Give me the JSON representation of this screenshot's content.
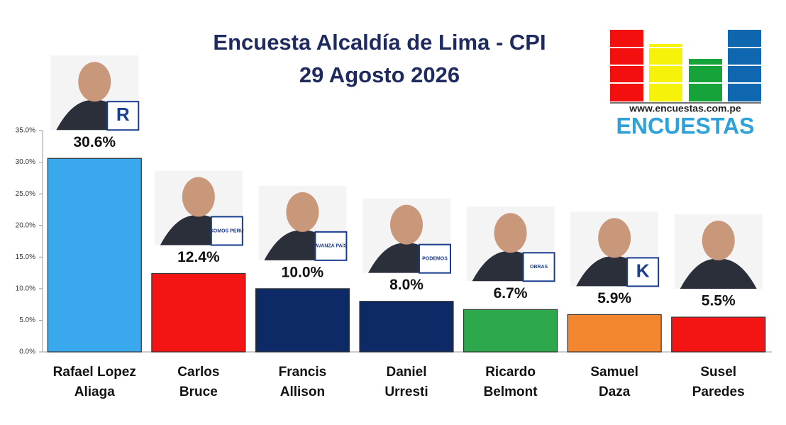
{
  "chart_data": {
    "type": "bar",
    "title": "Encuesta Alcaldía de Lima - CPI",
    "subtitle": "29 Agosto 2026",
    "categories": [
      [
        "Rafael Lopez",
        "Aliaga"
      ],
      [
        "Carlos",
        "Bruce"
      ],
      [
        "Francis",
        "Allison"
      ],
      [
        "Daniel",
        "Urresti"
      ],
      [
        "Ricardo",
        "Belmont"
      ],
      [
        "Samuel",
        "Daza"
      ],
      [
        "Susel",
        "Paredes"
      ]
    ],
    "values": [
      30.6,
      12.4,
      10.0,
      8.0,
      6.7,
      5.9,
      5.5
    ],
    "value_labels": [
      "30.6%",
      "12.4%",
      "10.0%",
      "8.0%",
      "6.7%",
      "5.9%",
      "5.5%"
    ],
    "colors": [
      "#3aa8ec",
      "#f41414",
      "#0d2a66",
      "#0d2a66",
      "#2ea84c",
      "#f2872f",
      "#f41414"
    ],
    "party_labels": [
      "R",
      "SOMOS PERU",
      "AVANZA PAÍS",
      "PODEMOS",
      "OBRAS",
      "K",
      ""
    ],
    "ylim": [
      0,
      35
    ],
    "yticks": [
      {
        "value": 0,
        "label": "0.0%"
      },
      {
        "value": 5,
        "label": "5.0%"
      },
      {
        "value": 10,
        "label": "10.0%"
      },
      {
        "value": 15,
        "label": "15.0%"
      },
      {
        "value": 20,
        "label": "20.0%"
      },
      {
        "value": 25,
        "label": "25.0%"
      },
      {
        "value": 30,
        "label": "30.0%"
      },
      {
        "value": 35,
        "label": "35.0%"
      }
    ],
    "grid": false
  },
  "logo": {
    "url": "www.encuestas.com.pe",
    "name": "ENCUESTAS"
  }
}
